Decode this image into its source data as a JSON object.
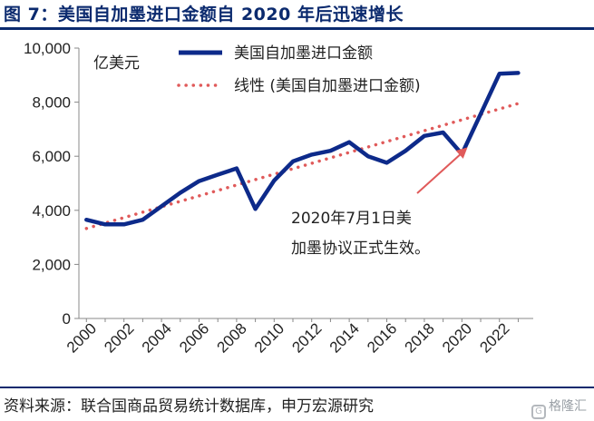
{
  "header": {
    "title": "图 7：美国自加墨进口金额自 2020 年后迅速增长"
  },
  "footer": {
    "source": "资料来源：联合国商品贸易统计数据库，申万宏源研究",
    "watermark": "格隆汇"
  },
  "colors": {
    "series": "#0d2a8a",
    "trend": "#e05a5a",
    "text": "#222222",
    "title": "#0b2a6e"
  },
  "chart_data": {
    "type": "line",
    "unit_label": "亿美元",
    "ylim": [
      0,
      10000
    ],
    "yticks": [
      0,
      2000,
      4000,
      6000,
      8000,
      10000
    ],
    "ytick_labels": [
      "0",
      "2,000",
      "4,000",
      "6,000",
      "8,000",
      "10,000"
    ],
    "xlim": [
      1999.6,
      2023.8
    ],
    "xticks": [
      2000,
      2002,
      2004,
      2006,
      2008,
      2010,
      2012,
      2014,
      2016,
      2018,
      2020,
      2022
    ],
    "xtick_labels": [
      "2000",
      "2002",
      "2004",
      "2006",
      "2008",
      "2010",
      "2012",
      "2014",
      "2016",
      "2018",
      "2020",
      "2022"
    ],
    "grid": false,
    "legend_position": "top-right",
    "series": [
      {
        "name": "美国自加墨进口金额",
        "style": "solid",
        "x": [
          2000,
          2001,
          2002,
          2003,
          2004,
          2005,
          2006,
          2007,
          2008,
          2009,
          2010,
          2011,
          2012,
          2013,
          2014,
          2015,
          2016,
          2017,
          2018,
          2019,
          2020,
          2021,
          2022,
          2023
        ],
        "values": [
          3650,
          3480,
          3480,
          3650,
          4150,
          4650,
          5080,
          5320,
          5550,
          4050,
          5100,
          5810,
          6060,
          6200,
          6520,
          6000,
          5760,
          6200,
          6750,
          6880,
          6080,
          7560,
          9050,
          9080
        ]
      },
      {
        "name": "线性 (美国自加墨进口金额)",
        "style": "dotted",
        "x": [
          2000,
          2023
        ],
        "values": [
          3330,
          7950
        ]
      }
    ],
    "annotation": {
      "lines": [
        "2020年7月1日美",
        "加墨协议正式生效。"
      ],
      "arrow_to": {
        "x": 2020.3,
        "y": 6330
      }
    }
  }
}
